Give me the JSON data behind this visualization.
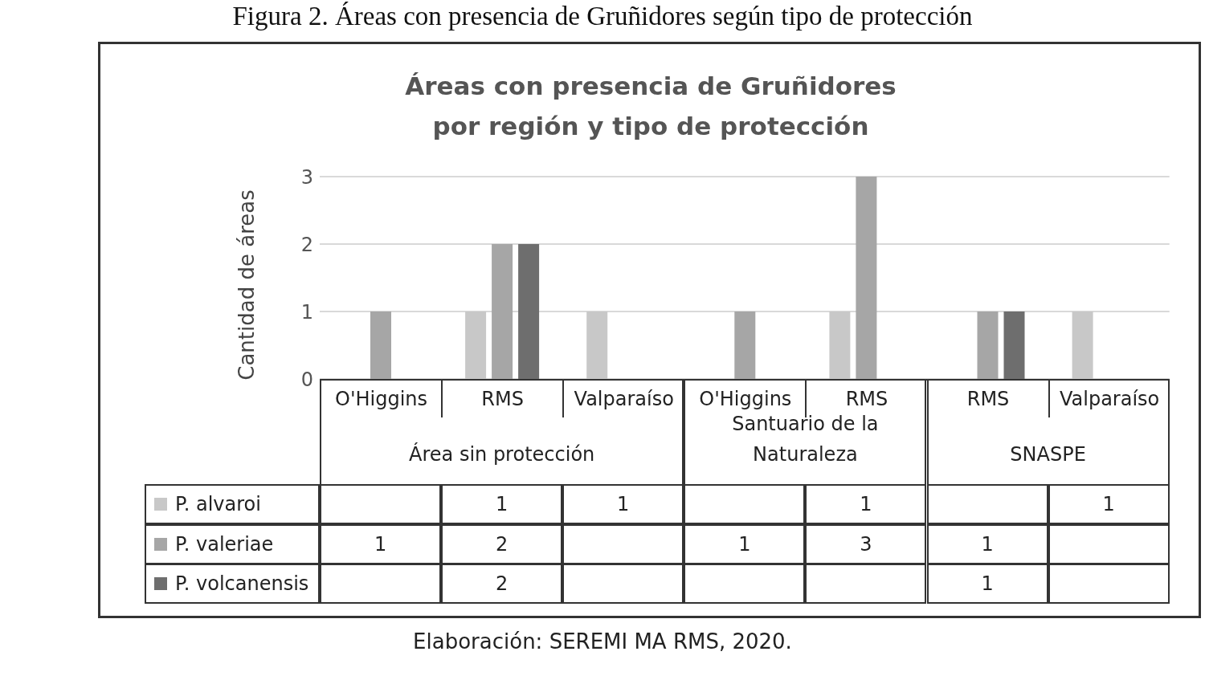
{
  "chart_data": {
    "type": "bar",
    "title": "Áreas con presencia de Gruñidores\npor región y tipo de protección",
    "ylabel": "Cantidad de áreas",
    "categories": [
      "O'Higgins",
      "RMS",
      "Valparaíso",
      "O'Higgins",
      "RMS",
      "RMS",
      "Valparaíso"
    ],
    "series": [
      {
        "name": "P. alvaroi",
        "color": "#c8c8c8",
        "values": [
          null,
          1,
          1,
          null,
          1,
          null,
          1
        ]
      },
      {
        "name": "P. valeriae",
        "color": "#a6a6a6",
        "values": [
          1,
          2,
          null,
          1,
          3,
          1,
          null
        ]
      },
      {
        "name": "P. volcanensis",
        "color": "#6e6e6e",
        "values": [
          null,
          2,
          null,
          null,
          null,
          1,
          null
        ]
      }
    ],
    "ylim": [
      0,
      3
    ],
    "yticks": [
      0,
      1,
      2,
      3
    ],
    "grid": "y",
    "legend": "bottom",
    "data_labels": true,
    "annotations": [
      "Figura 2. Áreas con presencia de Gruñidores según tipo de protección",
      "Elaboración: SEREMI MA RMS, 2020.",
      "Área sin protección",
      "Santuario de la Naturaleza",
      "SNASPE"
    ]
  }
}
